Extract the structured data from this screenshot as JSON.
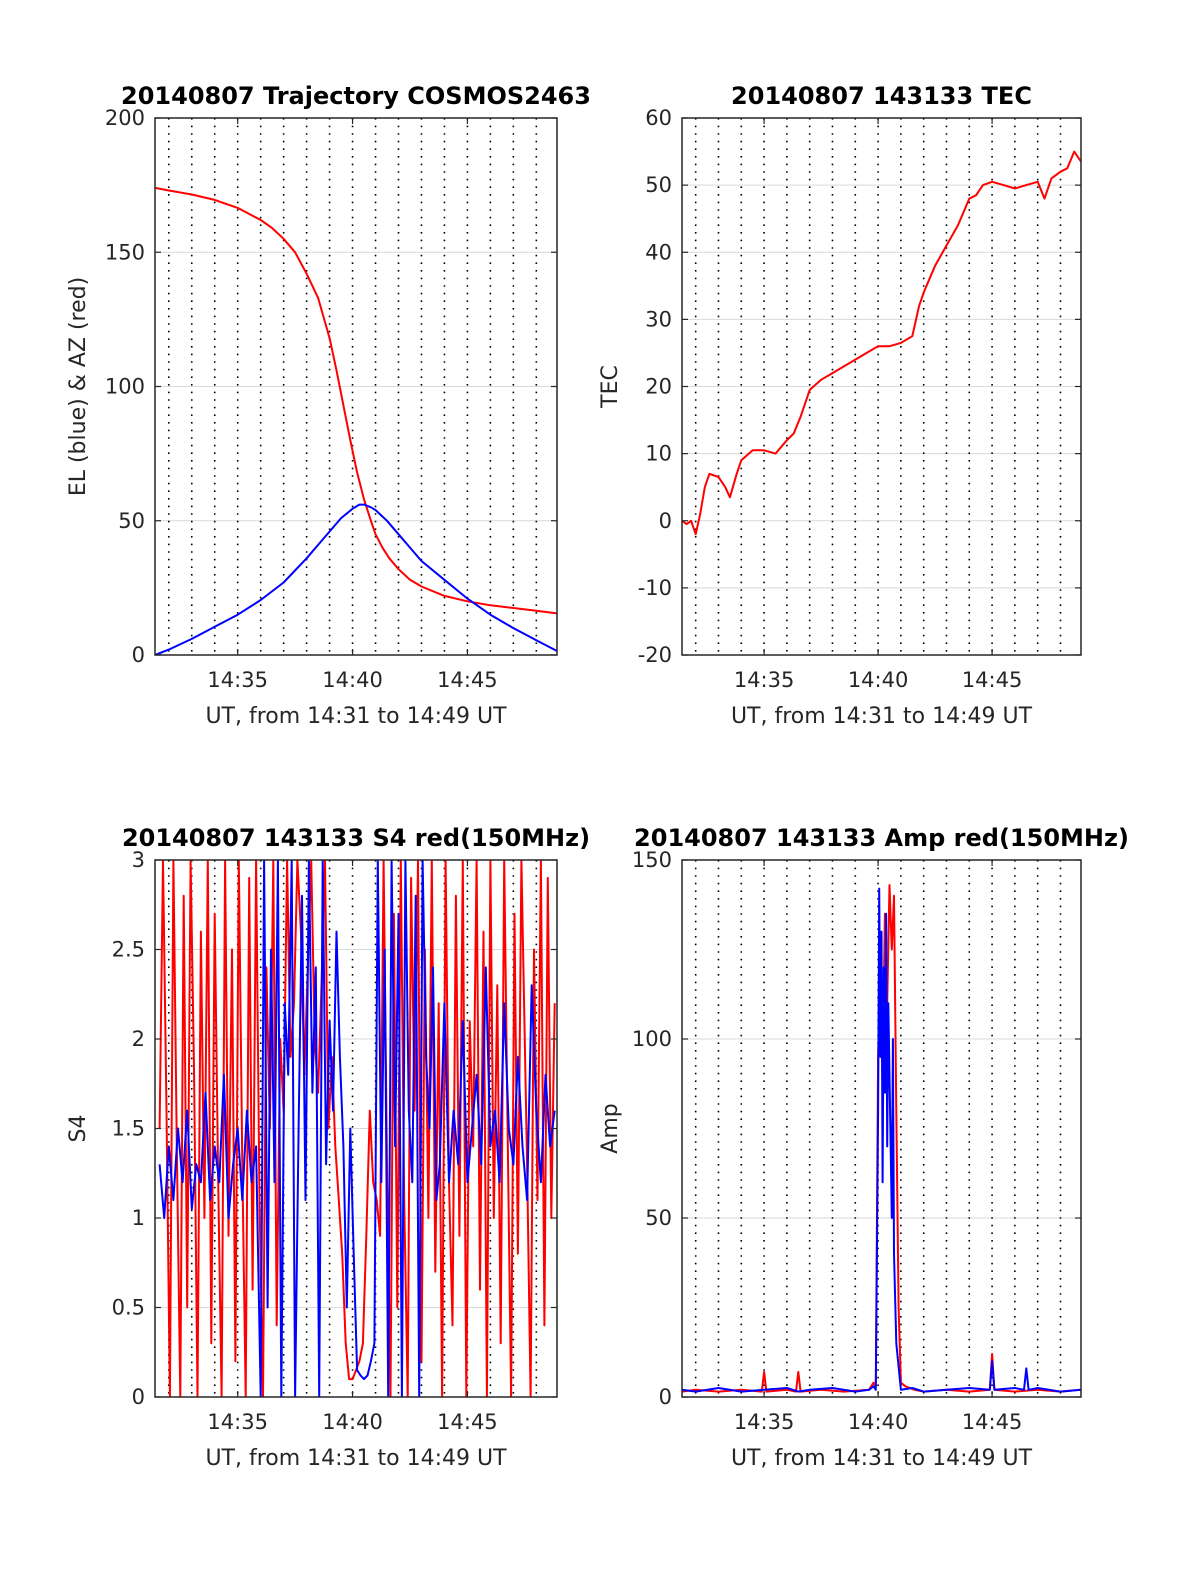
{
  "colors": {
    "red": "#ff0000",
    "blue": "#0000ff",
    "grid": "#d9d9d9",
    "axis": "#262626"
  },
  "chart_data": [
    {
      "type": "line",
      "title": "20140807 Trajectory COSMOS2463",
      "xlabel": "UT, from 14:31 to 14:49 UT",
      "ylabel": "EL (blue) & AZ (red)",
      "xlim": [
        31.4,
        48.9
      ],
      "ylim": [
        0,
        200
      ],
      "xticks": [
        35,
        40,
        45
      ],
      "xtick_labels": [
        "14:35",
        "14:40",
        "14:45"
      ],
      "yticks": [
        0,
        50,
        100,
        150,
        200
      ],
      "ytick_labels": [
        "0",
        "50",
        "100",
        "150",
        "200"
      ],
      "grid": true,
      "series": [
        {
          "color": "red",
          "x": [
            31.4,
            32,
            33,
            34,
            35,
            36,
            36.5,
            37,
            37.5,
            38,
            38.5,
            39,
            39.3,
            39.6,
            39.9,
            40.2,
            40.5,
            40.8,
            41,
            41.3,
            41.6,
            42,
            42.5,
            43,
            44,
            45,
            46,
            47,
            48,
            48.9
          ],
          "y": [
            174,
            173,
            171.5,
            169.5,
            166.5,
            162,
            159,
            155,
            150,
            142,
            133,
            118,
            106,
            93,
            80,
            68,
            58,
            50,
            45,
            40,
            36,
            32,
            28,
            25.5,
            22,
            20,
            18.5,
            17.5,
            16.5,
            15.5
          ]
        },
        {
          "color": "blue",
          "x": [
            31.4,
            32,
            33,
            34,
            35,
            36,
            37,
            38,
            38.5,
            39,
            39.5,
            40,
            40.3,
            40.5,
            40.8,
            41,
            41.5,
            42,
            42.5,
            43,
            44,
            45,
            46,
            47,
            48,
            48.9
          ],
          "y": [
            0,
            2,
            6,
            10.5,
            15,
            20.5,
            27,
            36,
            41,
            46,
            51,
            54.5,
            56,
            56,
            55,
            54,
            50,
            45,
            40,
            35,
            28,
            21,
            15,
            10,
            5.5,
            1.5
          ]
        }
      ]
    },
    {
      "type": "line",
      "title": "20140807 143133 TEC",
      "xlabel": "UT, from 14:31 to 14:49 UT",
      "ylabel": "TEC",
      "xlim": [
        31.4,
        48.9
      ],
      "ylim": [
        -20,
        60
      ],
      "xticks": [
        35,
        40,
        45
      ],
      "xtick_labels": [
        "14:35",
        "14:40",
        "14:45"
      ],
      "yticks": [
        -20,
        -10,
        0,
        10,
        20,
        30,
        40,
        50,
        60
      ],
      "ytick_labels": [
        "-20",
        "-10",
        "0",
        "10",
        "20",
        "30",
        "40",
        "50",
        "60"
      ],
      "grid": true,
      "series": [
        {
          "color": "red",
          "x": [
            31.4,
            31.6,
            31.8,
            32,
            32.2,
            32.4,
            32.6,
            33,
            33.3,
            33.5,
            33.8,
            34,
            34.5,
            35,
            35.5,
            36,
            36.3,
            36.6,
            37,
            37.5,
            38,
            38.5,
            39,
            39.5,
            40,
            40.5,
            41,
            41.5,
            41.8,
            42,
            42.5,
            43,
            43.5,
            44,
            44.3,
            44.6,
            45,
            45.5,
            46,
            46.5,
            47,
            47.3,
            47.6,
            48,
            48.3,
            48.6,
            48.9
          ],
          "y": [
            0,
            -0.5,
            0,
            -2,
            1,
            5,
            7,
            6.5,
            5,
            3.5,
            7,
            9,
            10.5,
            10.5,
            10,
            12,
            13,
            15.5,
            19.5,
            21,
            22,
            23,
            24,
            25,
            26,
            26,
            26.5,
            27.5,
            32,
            34,
            38,
            41,
            44,
            48,
            48.5,
            50,
            50.5,
            50,
            49.5,
            50,
            50.5,
            48,
            51,
            52,
            52.5,
            55,
            53.5
          ]
        }
      ]
    },
    {
      "type": "line",
      "title": "20140807 143133 S4 red(150MHz)",
      "xlabel": "UT, from 14:31 to 14:49 UT",
      "ylabel": "S4",
      "xlim": [
        31.4,
        48.9
      ],
      "ylim": [
        0,
        3
      ],
      "xticks": [
        35,
        40,
        45
      ],
      "xtick_labels": [
        "14:35",
        "14:40",
        "14:45"
      ],
      "yticks": [
        0,
        0.5,
        1,
        1.5,
        2,
        2.5,
        3
      ],
      "ytick_labels": [
        "0",
        "0.5",
        "1",
        "1.5",
        "2",
        "2.5",
        "3"
      ],
      "grid": true,
      "series": [
        {
          "color": "red",
          "x": [
            31.6,
            31.75,
            31.9,
            32.05,
            32.2,
            32.35,
            32.5,
            32.65,
            32.8,
            32.95,
            33.1,
            33.25,
            33.4,
            33.55,
            33.7,
            33.85,
            34,
            34.15,
            34.3,
            34.45,
            34.6,
            34.75,
            34.9,
            35.05,
            35.2,
            35.35,
            35.5,
            35.65,
            35.8,
            35.95,
            36.1,
            36.25,
            36.4,
            36.55,
            36.7,
            36.85,
            37,
            37.15,
            37.3,
            37.45,
            37.6,
            37.75,
            37.9,
            38.05,
            38.2,
            38.35,
            38.5,
            38.65,
            38.8,
            38.95,
            39.1,
            39.25,
            39.4,
            39.55,
            39.7,
            39.85,
            40,
            40.15,
            40.3,
            40.45,
            40.6,
            40.75,
            40.9,
            41.05,
            41.2,
            41.35,
            41.5,
            41.65,
            41.8,
            41.95,
            42.1,
            42.25,
            42.4,
            42.55,
            42.7,
            42.85,
            43,
            43.15,
            43.3,
            43.45,
            43.6,
            43.75,
            43.9,
            44.05,
            44.2,
            44.35,
            44.5,
            44.65,
            44.8,
            44.95,
            45.1,
            45.25,
            45.4,
            45.55,
            45.7,
            45.85,
            46,
            46.15,
            46.3,
            46.45,
            46.6,
            46.75,
            46.9,
            47.05,
            47.2,
            47.35,
            47.6,
            47.75,
            47.9,
            48.05,
            48.2,
            48.35,
            48.5,
            48.65,
            48.8
          ],
          "y": [
            1.5,
            3,
            1.6,
            0,
            3,
            1.4,
            0,
            2.8,
            0.5,
            3,
            1.8,
            0,
            2.6,
            1,
            3,
            0.3,
            2.7,
            1.2,
            0,
            3,
            0.9,
            2.5,
            0.2,
            3,
            1.3,
            0,
            2.9,
            0.6,
            3,
            1.1,
            0,
            2.4,
            1.5,
            3,
            0.4,
            2,
            1.6,
            3,
            1.9,
            2.2,
            3,
            2.6,
            1.8,
            2.4,
            3,
            2,
            1.7,
            2.3,
            3,
            1.5,
            1.9,
            1.4,
            1.1,
            0.8,
            0.3,
            0.1,
            0.1,
            0.15,
            0.2,
            0.3,
            0.9,
            1.6,
            1.2,
            1.1,
            0.9,
            3,
            1.3,
            0,
            2.7,
            0.5,
            3,
            1.1,
            0,
            2.9,
            1.6,
            3,
            0.2,
            2.5,
            1,
            3,
            0.7,
            2.2,
            0,
            3,
            1.2,
            0.4,
            2.8,
            0.9,
            3,
            0,
            2.1,
            1.4,
            3,
            0.6,
            2.6,
            0,
            3,
            1,
            2.3,
            0.3,
            3,
            1.5,
            0,
            2.7,
            0.8,
            3,
            1.3,
            0,
            2.5,
            1.1,
            3,
            0.4,
            2.9,
            1,
            2.2
          ]
        },
        {
          "color": "blue",
          "x": [
            31.6,
            31.8,
            32,
            32.2,
            32.4,
            32.6,
            32.8,
            33,
            33.2,
            33.4,
            33.6,
            33.8,
            34,
            34.2,
            34.4,
            34.6,
            34.8,
            35,
            35.2,
            35.4,
            35.6,
            35.8,
            36,
            36.15,
            36.3,
            36.45,
            36.6,
            36.75,
            36.9,
            37.05,
            37.2,
            37.35,
            37.5,
            37.65,
            37.8,
            37.95,
            38.1,
            38.25,
            38.4,
            38.55,
            38.7,
            38.85,
            39,
            39.15,
            39.3,
            39.45,
            39.6,
            39.75,
            39.9,
            40.05,
            40.2,
            40.35,
            40.5,
            40.65,
            40.8,
            40.95,
            41.1,
            41.25,
            41.4,
            41.55,
            41.7,
            41.85,
            42,
            42.15,
            42.3,
            42.45,
            42.6,
            42.75,
            42.9,
            43.05,
            43.2,
            43.35,
            43.5,
            43.65,
            43.8,
            44,
            44.2,
            44.4,
            44.6,
            44.8,
            45,
            45.2,
            45.4,
            45.6,
            45.8,
            46,
            46.2,
            46.4,
            46.6,
            46.8,
            47,
            47.2,
            47.4,
            47.6,
            47.8,
            48,
            48.2,
            48.4,
            48.6,
            48.8
          ],
          "y": [
            1.3,
            1,
            1.4,
            1.1,
            1.5,
            1.2,
            1.6,
            1.05,
            1.3,
            1.2,
            1.7,
            1.1,
            1.4,
            1.2,
            1.8,
            1,
            1.3,
            1.5,
            1.1,
            1.6,
            1.2,
            1.4,
            0,
            3,
            0.5,
            2.5,
            1.2,
            3,
            0,
            2.2,
            1.8,
            3,
            0,
            1.5,
            2.8,
            1.1,
            3,
            1.7,
            2.4,
            0,
            3,
            1.3,
            2.1,
            1.6,
            2.6,
            1.9,
            1.4,
            0.5,
            1.5,
            0.8,
            0.15,
            0.12,
            0.1,
            0.12,
            0.2,
            0.3,
            3,
            1.2,
            2.5,
            0,
            3,
            1.4,
            2.7,
            0,
            3,
            1.6,
            1.2,
            2.8,
            0,
            3,
            1.9,
            1.5,
            2.4,
            1.1,
            1.3,
            2.2,
            1.2,
            1.6,
            1.3,
            2.1,
            1.2,
            1.5,
            1.8,
            1.3,
            2.4,
            1.4,
            1.6,
            1.2,
            2.2,
            1.5,
            1.3,
            1.9,
            1.4,
            1.1,
            2.3,
            1.6,
            1.2,
            1.8,
            1.4,
            1.6
          ]
        }
      ]
    },
    {
      "type": "line",
      "title": "20140807 143133 Amp red(150MHz)",
      "xlabel": "UT, from 14:31 to 14:49 UT",
      "ylabel": "Amp",
      "xlim": [
        31.4,
        48.9
      ],
      "ylim": [
        0,
        150
      ],
      "xticks": [
        35,
        40,
        45
      ],
      "xtick_labels": [
        "14:35",
        "14:40",
        "14:45"
      ],
      "yticks": [
        0,
        50,
        100,
        150
      ],
      "ytick_labels": [
        "0",
        "50",
        "100",
        "150"
      ],
      "grid": true,
      "series": [
        {
          "color": "red",
          "x": [
            31.4,
            32,
            33,
            34,
            34.9,
            35,
            35.1,
            36,
            36.4,
            36.5,
            36.6,
            37.5,
            38.5,
            39.6,
            39.8,
            39.9,
            40,
            40.1,
            40.2,
            40.3,
            40.4,
            40.5,
            40.6,
            40.7,
            40.8,
            40.9,
            41,
            41.2,
            41.6,
            42,
            43,
            44,
            44.9,
            45,
            45.1,
            46,
            47,
            48,
            48.9
          ],
          "y": [
            1.5,
            2,
            1.5,
            2,
            1.5,
            7,
            1.5,
            2,
            1.5,
            7,
            1.5,
            2,
            1.5,
            2,
            4,
            3,
            95,
            120,
            88,
            135,
            110,
            143,
            125,
            140,
            80,
            25,
            4,
            3,
            2,
            1.5,
            2,
            1.5,
            2,
            12,
            2,
            1.5,
            2,
            1.5,
            2
          ]
        },
        {
          "color": "blue",
          "x": [
            31.4,
            32,
            33,
            34,
            35,
            36,
            36.5,
            37,
            38,
            39,
            39.6,
            39.8,
            39.9,
            40,
            40.05,
            40.1,
            40.15,
            40.2,
            40.25,
            40.3,
            40.35,
            40.4,
            40.45,
            40.5,
            40.6,
            40.65,
            40.7,
            40.8,
            41,
            41.5,
            42,
            43,
            44,
            44.9,
            45,
            45.1,
            46,
            46.4,
            46.5,
            46.6,
            47,
            48,
            48.9
          ],
          "y": [
            2,
            1.5,
            2.5,
            1.5,
            2,
            2.5,
            1.5,
            2,
            2.5,
            1.5,
            2,
            3,
            2,
            80,
            142,
            95,
            130,
            60,
            120,
            85,
            135,
            70,
            110,
            90,
            50,
            100,
            40,
            15,
            2,
            2.5,
            1.5,
            2,
            2.5,
            2,
            10,
            2,
            2.5,
            2,
            8,
            2,
            2.5,
            1.5,
            2
          ]
        }
      ]
    }
  ]
}
